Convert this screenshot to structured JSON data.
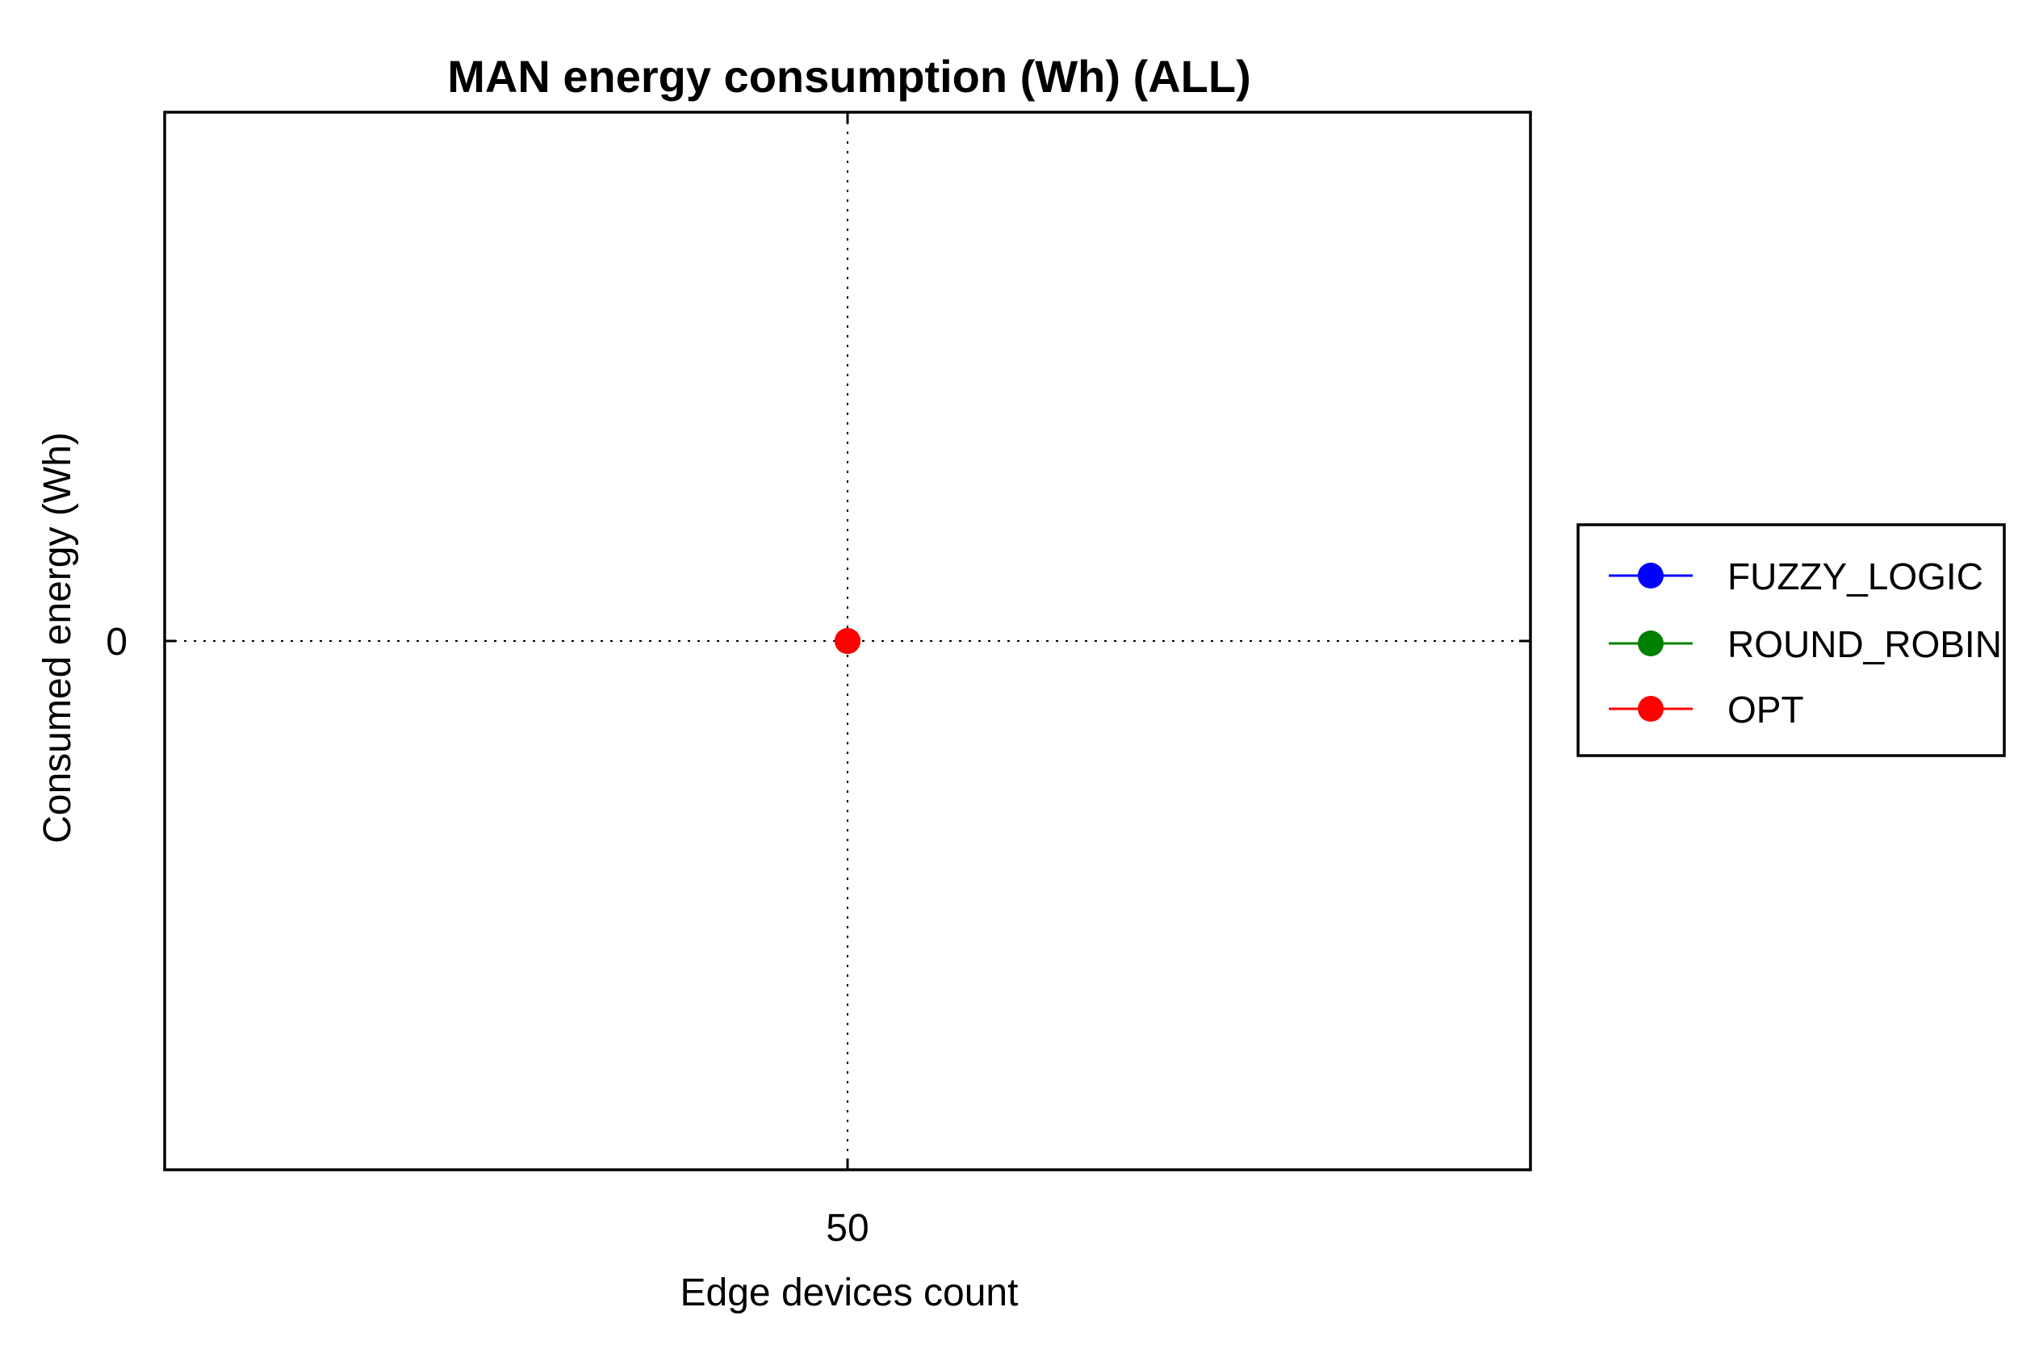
{
  "chart_data": {
    "type": "line",
    "title": "MAN energy consumption (Wh) (ALL)",
    "xlabel": "Edge devices count",
    "ylabel": "Consumed energy (Wh)",
    "x_ticks": [
      "50"
    ],
    "y_ticks": [
      "0"
    ],
    "xlim": [
      49,
      51
    ],
    "ylim": [
      -1,
      1
    ],
    "grid": true,
    "legend_position": "right",
    "series": [
      {
        "name": "FUZZY_LOGIC",
        "color": "#0000ff",
        "x": [
          50
        ],
        "y": [
          0
        ]
      },
      {
        "name": "ROUND_ROBIN",
        "color": "#008000",
        "x": [
          50
        ],
        "y": [
          0
        ]
      },
      {
        "name": "OPT",
        "color": "#ff0000",
        "x": [
          50
        ],
        "y": [
          0
        ]
      }
    ]
  }
}
